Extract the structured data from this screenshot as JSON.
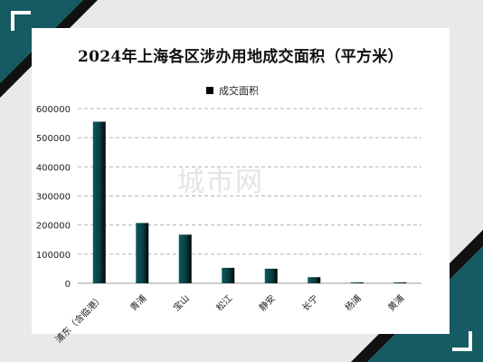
{
  "colors": {
    "bar_top": "#0b5a5e",
    "bar_dark": "#050505",
    "gridline": "#b3b3b3",
    "corner_teal": "#165a63",
    "corner_dark": "#111111",
    "background": "#e9e9e9",
    "card": "#ffffff"
  },
  "watermark_text": "城市网",
  "chart_data": {
    "type": "bar",
    "title": "2024年上海各区涉办用地成交面积（平方米）",
    "legend": [
      "成交面积"
    ],
    "legend_position": "top",
    "grid": true,
    "categories": [
      "浦东（含临港）",
      "青浦",
      "宝山",
      "松江",
      "静安",
      "长宁",
      "杨浦",
      "黄浦"
    ],
    "series": [
      {
        "name": "成交面积",
        "values": [
          555000,
          207000,
          167000,
          53000,
          50000,
          21000,
          3000,
          2500
        ]
      }
    ],
    "yticks": [
      "0",
      "100000",
      "200000",
      "300000",
      "400000",
      "500000",
      "600000"
    ],
    "ylim": [
      0,
      600000
    ],
    "xlabel": "",
    "ylabel": ""
  }
}
